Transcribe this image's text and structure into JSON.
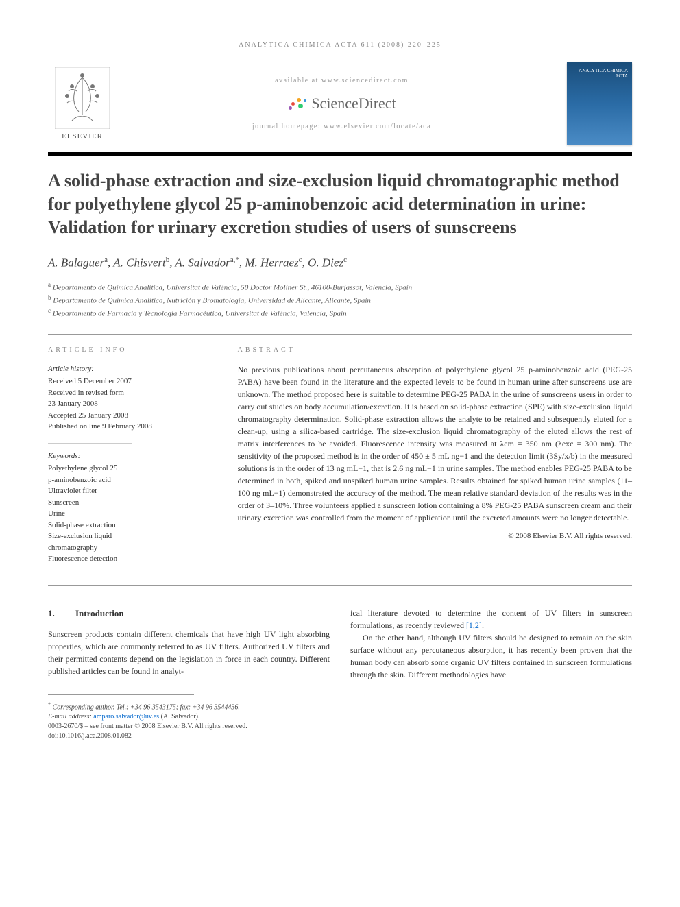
{
  "running_head": "ANALYTICA CHIMICA ACTA 611 (2008) 220–225",
  "header": {
    "elsevier": "ELSEVIER",
    "available_at": "available at www.sciencedirect.com",
    "sciencedirect": "ScienceDirect",
    "journal_homepage": "journal homepage: www.elsevier.com/locate/aca",
    "cover_title": "ANALYTICA CHIMICA ACTA",
    "sd_dot_colors": [
      "#f5a623",
      "#e74c3c",
      "#2ecc71",
      "#3498db",
      "#9b59b6"
    ]
  },
  "title": "A solid-phase extraction and size-exclusion liquid chromatographic method for polyethylene glycol 25 p-aminobenzoic acid determination in urine: Validation for urinary excretion studies of users of sunscreens",
  "authors_html": "A. Balaguer<span class='sup'>a</span>, A. Chisvert<span class='sup'>b</span>, A. Salvador<span class='sup'>a,*</span>, M. Herraez<span class='sup'>c</span>, O. Diez<span class='sup'>c</span>",
  "affiliations": [
    {
      "sup": "a",
      "text": "Departamento de Química Analítica, Universitat de València, 50 Doctor Moliner St., 46100-Burjassot, Valencia, Spain"
    },
    {
      "sup": "b",
      "text": "Departamento de Química Analítica, Nutrición y Bromatología, Universidad de Alicante, Alicante, Spain"
    },
    {
      "sup": "c",
      "text": "Departamento de Farmacia y Tecnología Farmacéutica, Universitat de València, Valencia, Spain"
    }
  ],
  "info": {
    "heading": "ARTICLE INFO",
    "history_label": "Article history:",
    "history": [
      "Received 5 December 2007",
      "Received in revised form",
      "23 January 2008",
      "Accepted 25 January 2008",
      "Published on line 9 February 2008"
    ],
    "keywords_label": "Keywords:",
    "keywords": [
      "Polyethylene glycol 25",
      "p-aminobenzoic acid",
      "Ultraviolet filter",
      "Sunscreen",
      "Urine",
      "Solid-phase extraction",
      "Size-exclusion liquid",
      "chromatography",
      "Fluorescence detection"
    ]
  },
  "abstract": {
    "heading": "ABSTRACT",
    "text": "No previous publications about percutaneous absorption of polyethylene glycol 25 p-aminobenzoic acid (PEG-25 PABA) have been found in the literature and the expected levels to be found in human urine after sunscreens use are unknown. The method proposed here is suitable to determine PEG-25 PABA in the urine of sunscreens users in order to carry out studies on body accumulation/excretion. It is based on solid-phase extraction (SPE) with size-exclusion liquid chromatography determination. Solid-phase extraction allows the analyte to be retained and subsequently eluted for a clean-up, using a silica-based cartridge. The size-exclusion liquid chromatography of the eluted allows the rest of matrix interferences to be avoided. Fluorescence intensity was measured at λem = 350 nm (λexc = 300 nm). The sensitivity of the proposed method is in the order of 450 ± 5 mL ng−1 and the detection limit (3Sy/x/b) in the measured solutions is in the order of 13 ng mL−1, that is 2.6 ng mL−1 in urine samples. The method enables PEG-25 PABA to be determined in both, spiked and unspiked human urine samples. Results obtained for spiked human urine samples (11–100 ng mL−1) demonstrated the accuracy of the method. The mean relative standard deviation of the results was in the order of 3–10%. Three volunteers applied a sunscreen lotion containing a 8% PEG-25 PABA sunscreen cream and their urinary excretion was controlled from the moment of application until the excreted amounts were no longer detectable.",
    "copyright": "© 2008 Elsevier B.V. All rights reserved."
  },
  "section1": {
    "num": "1.",
    "title": "Introduction",
    "para1": "Sunscreen products contain different chemicals that have high UV light absorbing properties, which are commonly referred to as UV filters. Authorized UV filters and their permitted contents depend on the legislation in force in each country. Different published articles can be found in analyt-",
    "para2_a": "ical literature devoted to determine the content of UV filters in sunscreen formulations, as recently reviewed ",
    "para2_refs": "[1,2]",
    "para2_b": ".",
    "para3": "On the other hand, although UV filters should be designed to remain on the skin surface without any percutaneous absorption, it has recently been proven that the human body can absorb some organic UV filters contained in sunscreen formulations through the skin. Different methodologies have"
  },
  "footnotes": {
    "corresponding": "Corresponding author. Tel.: +34 96 3543175; fax: +34 96 3544436.",
    "email_label": "E-mail address: ",
    "email": "amparo.salvador@uv.es",
    "email_suffix": " (A. Salvador).",
    "issn_line": "0003-2670/$ – see front matter © 2008 Elsevier B.V. All rights reserved.",
    "doi": "doi:10.1016/j.aca.2008.01.082"
  },
  "colors": {
    "link": "#0066cc",
    "text": "#333333",
    "muted": "#888888"
  }
}
